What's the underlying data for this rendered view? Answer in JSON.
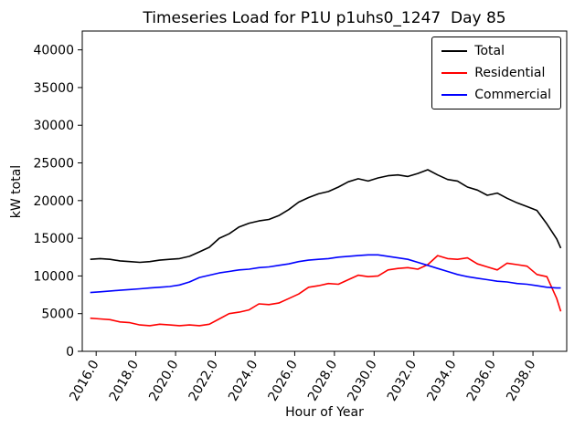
{
  "chart_data": {
    "type": "line",
    "title": "Timeseries Load for P1U p1uhs0_1247  Day 85",
    "xlabel": "Hour of Year",
    "ylabel": "kW total",
    "xlim": [
      2015.3,
      2039.7
    ],
    "ylim": [
      0,
      42500
    ],
    "grid": false,
    "legend_position": "upper right",
    "xticks": [
      2016,
      2018,
      2020,
      2022,
      2024,
      2026,
      2028,
      2030,
      2032,
      2034,
      2036,
      2038
    ],
    "xtick_labels": [
      "2016.0",
      "2018.0",
      "2020.0",
      "2022.0",
      "2024.0",
      "2026.0",
      "2028.0",
      "2030.0",
      "2032.0",
      "2034.0",
      "2036.0",
      "2038.0"
    ],
    "yticks": [
      0,
      5000,
      10000,
      15000,
      20000,
      25000,
      30000,
      35000,
      40000
    ],
    "ytick_labels": [
      "0",
      "5000",
      "10000",
      "15000",
      "20000",
      "25000",
      "30000",
      "35000",
      "40000"
    ],
    "x": [
      2015.7,
      2016.2,
      2016.7,
      2017.2,
      2017.7,
      2018.2,
      2018.7,
      2019.2,
      2019.7,
      2020.2,
      2020.7,
      2021.2,
      2021.7,
      2022.2,
      2022.7,
      2023.2,
      2023.7,
      2024.2,
      2024.7,
      2025.2,
      2025.7,
      2026.2,
      2026.7,
      2027.2,
      2027.7,
      2028.2,
      2028.7,
      2029.2,
      2029.7,
      2030.2,
      2030.7,
      2031.2,
      2031.7,
      2032.2,
      2032.7,
      2033.2,
      2033.7,
      2034.2,
      2034.7,
      2035.2,
      2035.7,
      2036.2,
      2036.7,
      2037.2,
      2037.7,
      2038.2,
      2038.7,
      2039.2,
      2039.4
    ],
    "series": [
      {
        "name": "Total",
        "color": "#000000",
        "values": [
          12200,
          12300,
          12200,
          12000,
          11900,
          11800,
          11900,
          12100,
          12200,
          12300,
          12600,
          13200,
          13800,
          15000,
          15600,
          16500,
          17000,
          17300,
          17500,
          18000,
          18800,
          19800,
          20400,
          20900,
          21200,
          21800,
          22500,
          22900,
          22600,
          23000,
          23300,
          23400,
          23200,
          23600,
          24100,
          23400,
          22800,
          22600,
          21800,
          21400,
          20700,
          21000,
          20300,
          19700,
          19200,
          18700,
          16900,
          14900,
          13700
        ]
      },
      {
        "name": "Residential",
        "color": "#ff0000",
        "values": [
          4400,
          4300,
          4200,
          3900,
          3800,
          3500,
          3400,
          3600,
          3500,
          3400,
          3500,
          3400,
          3600,
          4300,
          5000,
          5200,
          5500,
          6300,
          6200,
          6400,
          7000,
          7600,
          8500,
          8700,
          9000,
          8900,
          9500,
          10100,
          9900,
          10000,
          10800,
          11000,
          11100,
          10900,
          11500,
          12700,
          12300,
          12200,
          12400,
          11600,
          11200,
          10800,
          11700,
          11500,
          11300,
          10200,
          9900,
          7000,
          5300
        ]
      },
      {
        "name": "Commercial",
        "color": "#0000ff",
        "values": [
          7800,
          7900,
          8000,
          8100,
          8200,
          8300,
          8400,
          8500,
          8600,
          8800,
          9200,
          9800,
          10100,
          10400,
          10600,
          10800,
          10900,
          11100,
          11200,
          11400,
          11600,
          11900,
          12100,
          12200,
          12300,
          12500,
          12600,
          12700,
          12800,
          12800,
          12600,
          12400,
          12200,
          11800,
          11400,
          11000,
          10600,
          10200,
          9900,
          9700,
          9500,
          9300,
          9200,
          9000,
          8900,
          8700,
          8500,
          8400,
          8400
        ]
      }
    ]
  }
}
